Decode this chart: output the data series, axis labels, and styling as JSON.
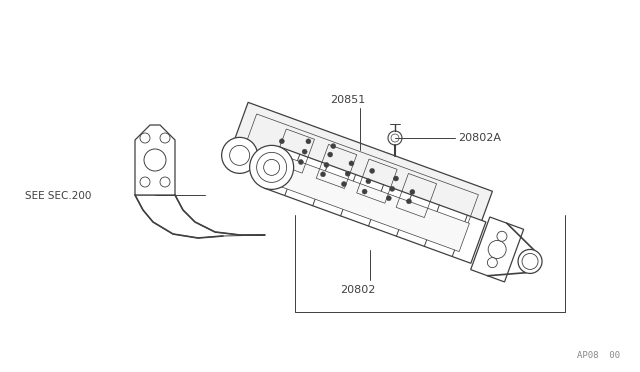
{
  "background_color": "#ffffff",
  "line_color": "#404040",
  "label_color": "#404040",
  "fig_width": 6.4,
  "fig_height": 3.72,
  "dpi": 100,
  "watermark": "AP08  00",
  "title_color": "#333333",
  "lw": 0.9
}
